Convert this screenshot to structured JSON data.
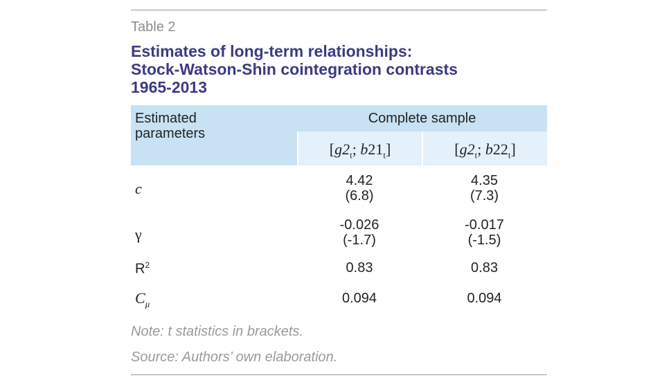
{
  "table_label": "Table 2",
  "title_lines": [
    "Estimates of long-term relationships:",
    "Stock-Watson-Shin cointegration contrasts",
    "1965-2013"
  ],
  "header": {
    "row_label_lines": [
      "Estimated",
      "parameters"
    ],
    "group": "Complete sample",
    "columns": [
      {
        "open": "[",
        "var1": "g2",
        "sub1": "t",
        "sep": "; ",
        "var2": "b",
        "num2": "21",
        "sub2": "t",
        "close": "]"
      },
      {
        "open": "[",
        "var1": "g2",
        "sub1": "t",
        "sep": "; ",
        "var2": "b",
        "num2": "22",
        "sub2": "t",
        "close": "]"
      }
    ]
  },
  "rows": [
    {
      "label": "c",
      "values": [
        {
          "est": "4.42",
          "t": "(6.8)"
        },
        {
          "est": "4.35",
          "t": "(7.3)"
        }
      ]
    },
    {
      "label": "γ",
      "values": [
        {
          "est": "-0.026",
          "t": "(-1.7)"
        },
        {
          "est": "-0.017",
          "t": "(-1.5)"
        }
      ]
    },
    {
      "label": "R",
      "label_sup": "2",
      "values": [
        {
          "est": "0.83"
        },
        {
          "est": "0.83"
        }
      ]
    },
    {
      "label": "C",
      "label_sub": "μ",
      "values": [
        {
          "est": "0.094"
        },
        {
          "est": "0.094"
        }
      ]
    }
  ],
  "notes": [
    "Note: t statistics in brackets.",
    "Source: Authors’ own elaboration."
  ]
}
